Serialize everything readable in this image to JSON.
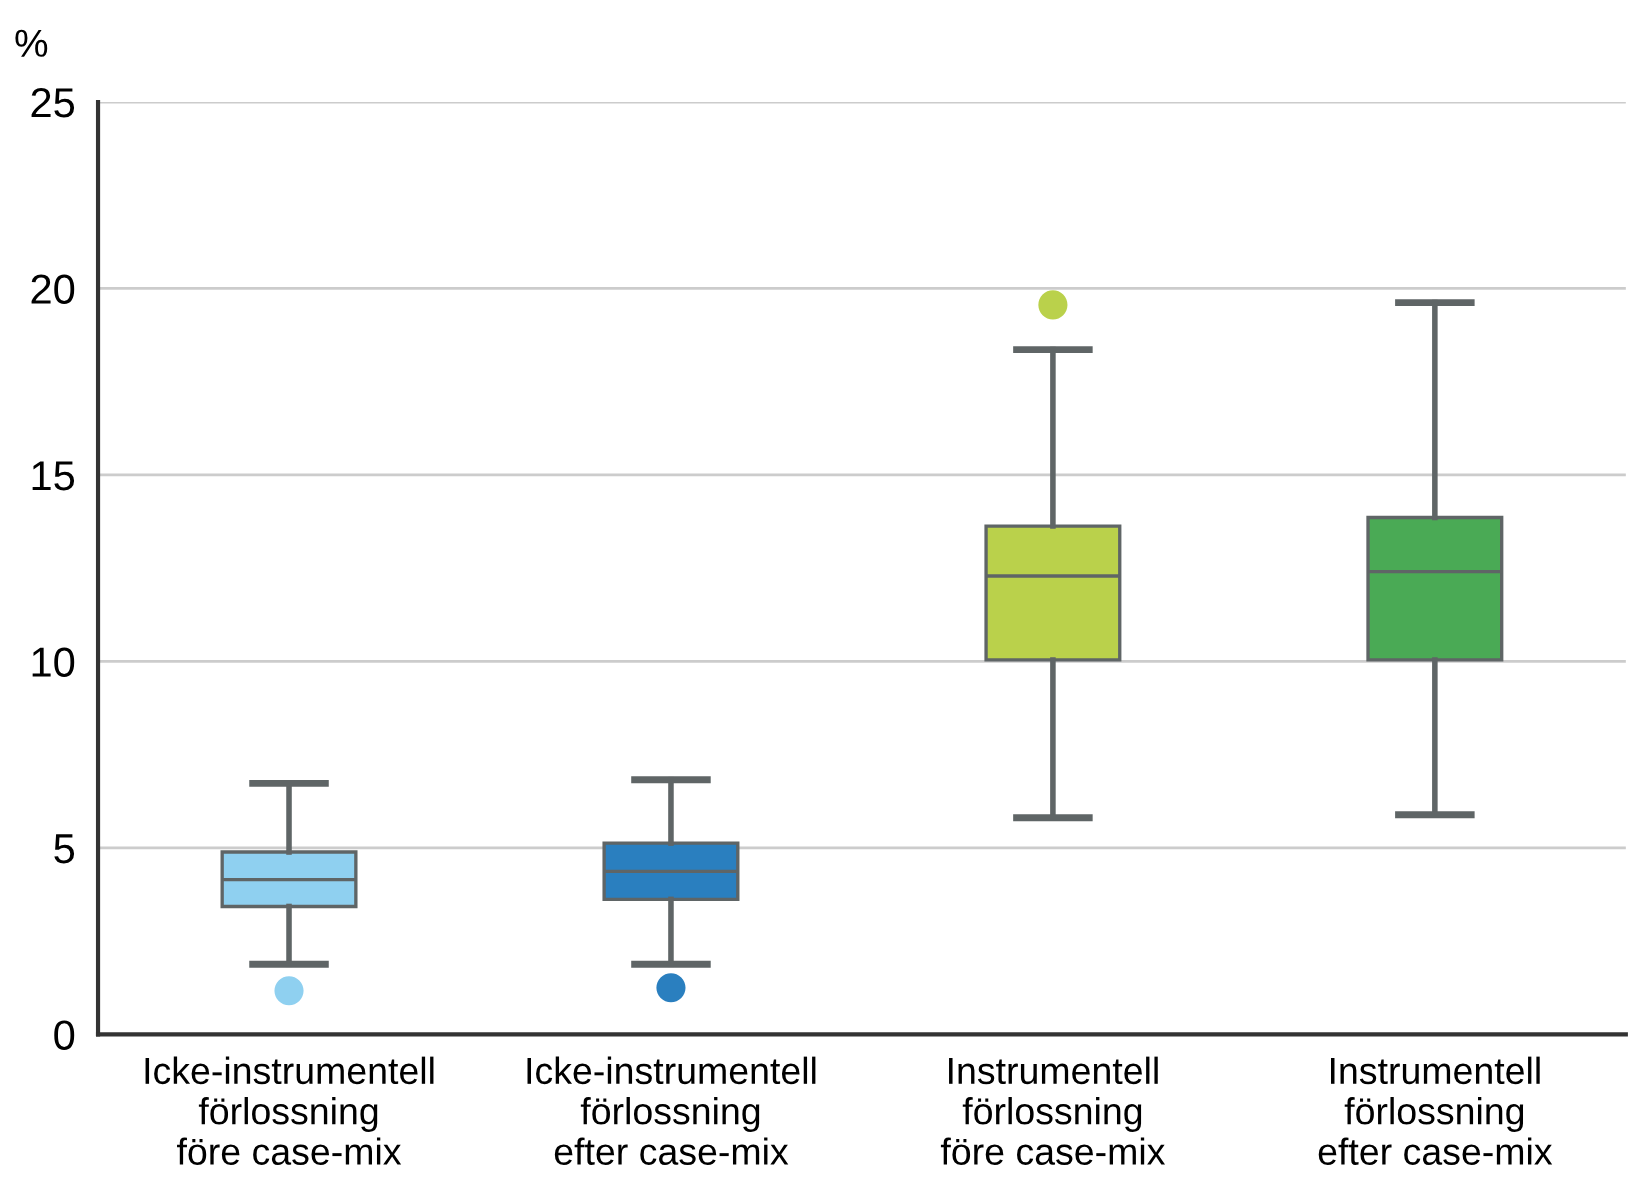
{
  "chart_data": {
    "type": "box",
    "ylabel": "%",
    "categories": [
      "Icke-instrumentell\nförlossning\nföre case-mix",
      "Icke-instrumentell\nförlossning\nefter case-mix",
      "Instrumentell\nförlossning\nföre case-mix",
      "Instrumentell\nförlossning\nefter case-mix"
    ],
    "colors": [
      "#8fd0f0",
      "#2a7fbf",
      "#bad14b",
      "#4aaa55"
    ],
    "boxes": [
      {
        "low": 1.88,
        "q1": 3.43,
        "median": 4.15,
        "q3": 4.89,
        "high": 6.73,
        "outliers": [
          1.17
        ]
      },
      {
        "low": 1.88,
        "q1": 3.62,
        "median": 4.37,
        "q3": 5.13,
        "high": 6.83,
        "outliers": [
          1.25
        ]
      },
      {
        "low": 5.81,
        "q1": 10.04,
        "median": 12.29,
        "q3": 13.63,
        "high": 18.36,
        "outliers": [
          19.56
        ]
      },
      {
        "low": 5.89,
        "q1": 10.04,
        "median": 12.41,
        "q3": 13.86,
        "high": 19.62
      }
    ],
    "ylim": [
      0,
      25
    ],
    "yticks": [
      0,
      5,
      10,
      15,
      20,
      25
    ],
    "grid": "y",
    "legend": false
  }
}
